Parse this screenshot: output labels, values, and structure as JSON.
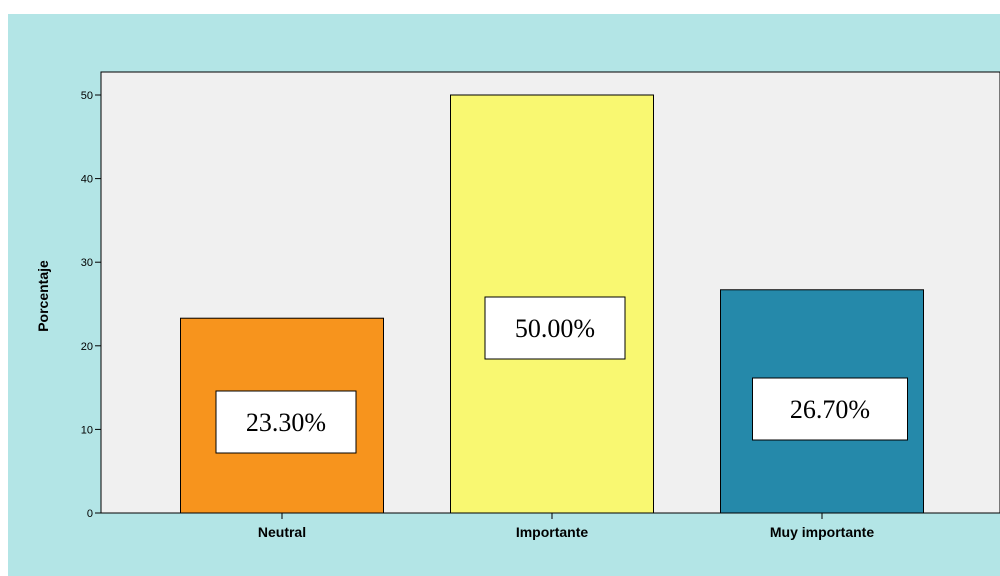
{
  "chart_data": {
    "type": "bar",
    "categories": [
      "Neutral",
      "Importante",
      "Muy importante"
    ],
    "values": [
      23.3,
      50.0,
      26.7
    ],
    "data_labels": [
      "23.30%",
      "50.00%",
      "26.70%"
    ],
    "title": "",
    "xlabel": "",
    "ylabel": "Porcentaje",
    "ylim": [
      0,
      52
    ],
    "yticks": [
      "0",
      "10",
      "20",
      "30",
      "40",
      "50"
    ],
    "grid": false,
    "bar_colors": [
      "#F7941D",
      "#F9F871",
      "#2589AA"
    ],
    "background_color": "#B3E5E6",
    "plot_background_color": "#F0F0F0"
  }
}
